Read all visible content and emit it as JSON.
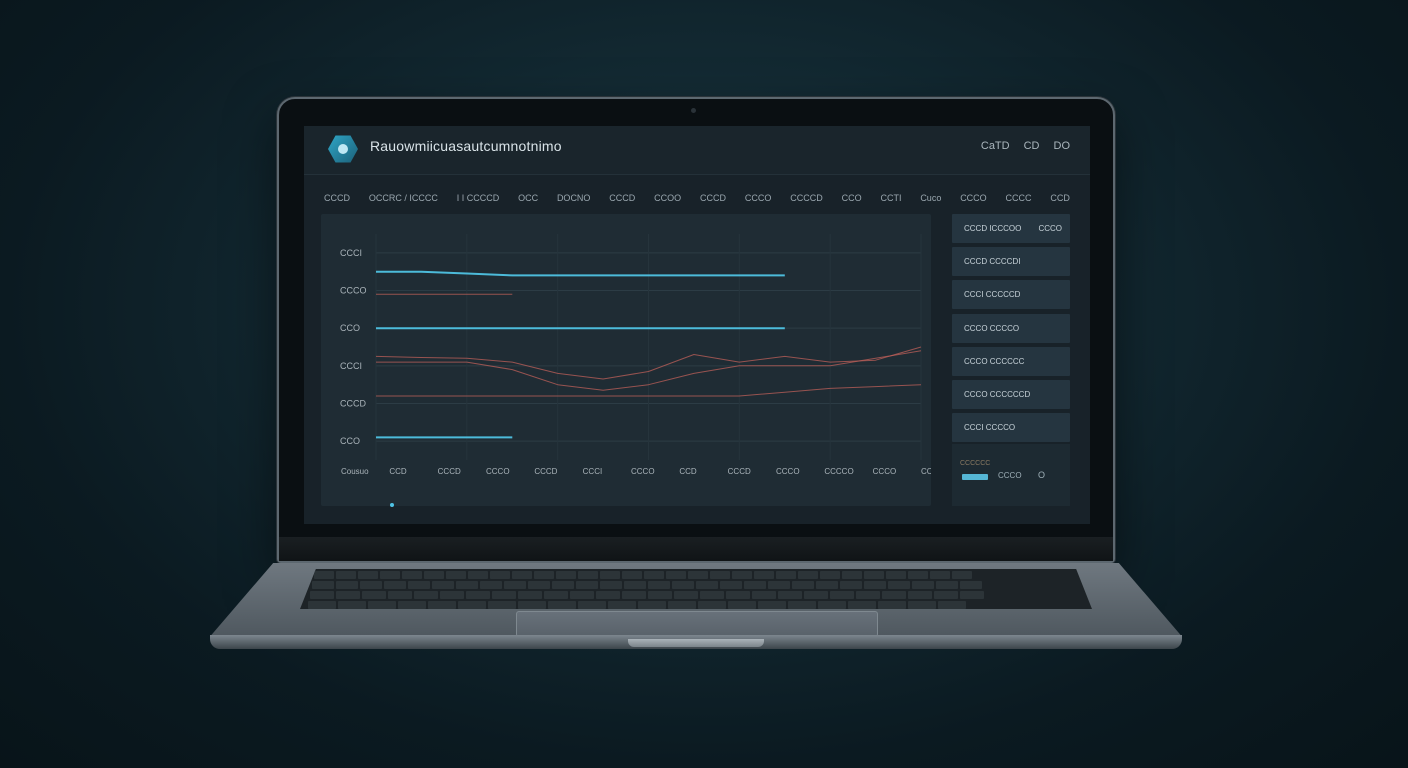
{
  "app": {
    "title": "Rauowmiicuasautcumnotnimo",
    "header_buttons": [
      "CaTD",
      "CD",
      "DO"
    ]
  },
  "nav": {
    "items": [
      "CCCD",
      "OCCRC / ICCCC",
      "I I CCCCD",
      "OCC",
      "DOCNO",
      "CCCD",
      "CCOO",
      "CCCD",
      "CCCO",
      "CCCCD",
      "CCO",
      "CCTI",
      "Cuco",
      "CCCO",
      "CCCC",
      "CCD"
    ]
  },
  "chart": {
    "y_ticks": [
      "CCCI",
      "CCCO",
      "CCO",
      "CCCI",
      "CCCD",
      "CCO"
    ],
    "x_ticks": [
      "Cousuo",
      "CCD",
      "CCCD",
      "CCCO",
      "CCCD",
      "CCCI",
      "CCCO",
      "CCD",
      "CCCD",
      "CCCO",
      "CCCCO",
      "CCCO",
      "CCCO"
    ]
  },
  "sidebar": {
    "header": {
      "left": "CCCD ICCCOO",
      "right": "CCCO"
    },
    "items": [
      "CCCD CCCCDI",
      "CCCI CCCCCD",
      "CCCO CCCCO",
      "CCCO CCCCCC",
      "CCCO CCCCCCD",
      "CCCI CCCCO"
    ],
    "footer": {
      "small": "CCCCCC",
      "label": "CCCO",
      "icon": "O"
    }
  },
  "colors": {
    "accent": "#4fc3e4",
    "secondary": "#c0605a",
    "panel": "#1f2c34"
  },
  "chart_data": {
    "type": "line",
    "x": [
      0,
      1,
      2,
      3,
      4,
      5,
      6,
      7,
      8,
      9,
      10,
      11,
      12
    ],
    "xlim": [
      0,
      12
    ],
    "ylim": [
      0,
      6
    ],
    "series": [
      {
        "color": "#4fc3e4",
        "values": [
          5.0,
          5.0,
          4.95,
          4.9,
          4.9,
          4.9,
          4.9,
          4.9,
          4.9,
          4.9,
          null,
          null,
          null
        ]
      },
      {
        "color": "#c0605a",
        "values": [
          4.4,
          4.4,
          4.4,
          4.4,
          null,
          null,
          null,
          null,
          null,
          null,
          null,
          null,
          null
        ]
      },
      {
        "color": "#4fc3e4",
        "values": [
          3.5,
          3.5,
          3.5,
          3.5,
          3.5,
          3.5,
          3.5,
          3.5,
          3.5,
          3.5,
          null,
          null,
          null
        ]
      },
      {
        "color": "#c0605a",
        "values": [
          2.75,
          2.72,
          2.7,
          2.6,
          2.3,
          2.15,
          2.35,
          2.8,
          2.6,
          2.75,
          2.6,
          2.65,
          3.0
        ]
      },
      {
        "color": "#c0605a",
        "values": [
          2.6,
          2.6,
          2.6,
          2.4,
          2.0,
          1.85,
          2.0,
          2.3,
          2.5,
          2.5,
          2.5,
          2.7,
          2.9
        ]
      },
      {
        "color": "#c0605a",
        "values": [
          1.7,
          1.7,
          1.7,
          1.7,
          1.7,
          1.7,
          1.7,
          1.7,
          1.7,
          1.8,
          1.9,
          1.95,
          2.0
        ]
      },
      {
        "color": "#4fc3e4",
        "values": [
          0.6,
          0.6,
          0.6,
          0.6,
          null,
          null,
          null,
          null,
          null,
          null,
          null,
          null,
          null
        ]
      }
    ]
  }
}
